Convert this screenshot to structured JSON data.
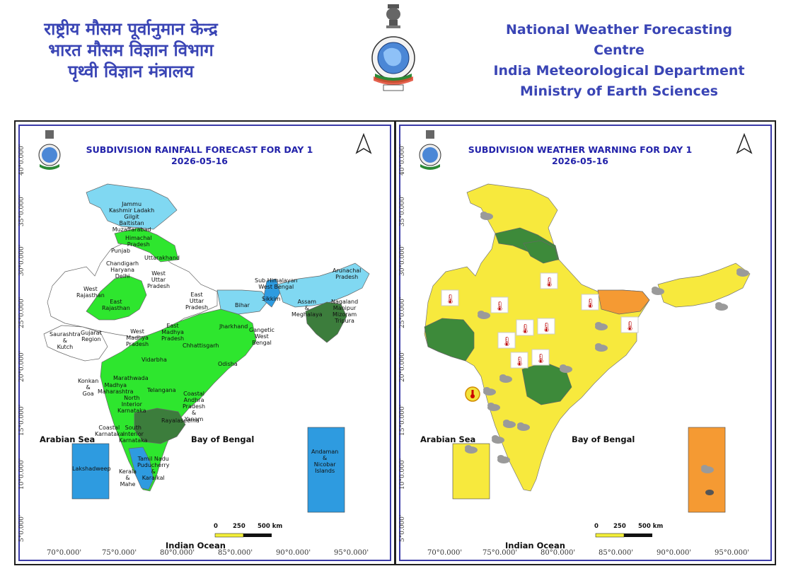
{
  "header": {
    "hindi_lines": [
      "राष्ट्रीय मौसम पूर्वानुमान केन्द्र",
      "भारत मौसम विज्ञान विभाग",
      "पृथ्वी विज्ञान मंत्रालय"
    ],
    "english_lines": [
      "National Weather Forecasting Centre",
      "India Meteorological Department",
      "Ministry of Earth Sciences"
    ],
    "emblem_icon": "imd-emblem-icon"
  },
  "colors": {
    "header_text": "#3a45b5",
    "title_text": "#2222aa",
    "rain_light_blue": "#80d8f2",
    "rain_green": "#2ee62e",
    "rain_dark_green": "#3c7d3c",
    "rain_blue": "#2e9be0",
    "rain_white": "#ffffff",
    "warn_yellow": "#f7e93d",
    "warn_dark_green": "#3d8a3a",
    "warn_orange": "#f59a33"
  },
  "panels": {
    "rainfall": {
      "title": "SUBDIVISION RAINFALL FORECAST FOR DAY 1",
      "date": "2026-05-16",
      "north_arrow_icon": "north-arrow-icon",
      "sea_labels": {
        "arabian": "Arabian Sea",
        "bengal": "Bay of Bengal",
        "indian": "Indian Ocean"
      },
      "lat_labels": [
        "40°0.000'",
        "35°0.000'",
        "30°0.000'",
        "25°0.000'",
        "20°0.000'",
        "15°0.000'",
        "10°0.000'",
        "5°0.000'"
      ],
      "lon_labels": [
        "70°0.000'",
        "75°0.000'",
        "80°0.000'",
        "85°0.000'",
        "90°0.000'",
        "95°0.000'"
      ],
      "scale": {
        "zero": "0",
        "mid": "250",
        "end": "500 km"
      },
      "subdivision_labels": {
        "jk": "Jammu\nKashmir Ladakh\nGilgit\nBaltistan\nMuzaffarabad",
        "hp": "Himachal\nPradesh",
        "punjab": "Punjab",
        "uk": "Uttarakhand",
        "chd": "Chandigarh\nHaryana\nDelhi",
        "wup": "West\nUttar\nPradesh",
        "wr": "West\nRajasthan",
        "er": "East\nRajasthan",
        "eup": "East\nUttar\nPradesh",
        "bihar": "Bihar",
        "shwb": "Sub Himalayan\nWest Bengal",
        "sikkim": "Sikkim",
        "arunachal": "Arunachal\nPradesh",
        "assam": "Assam\n&\nMeghalaya",
        "nmmt": "Nagaland\nManipur\nMizoram\nTripura",
        "sk": "Saurashtra\n&\nKutch",
        "gujarat": "Gujarat\nRegion",
        "wmp": "West\nMadhya\nPradesh",
        "emp": "East\nMadhya\nPradesh",
        "jharkhand": "Jharkhand",
        "gwb": "Gangetic\nWest\nBengal",
        "chhattisgarh": "Chhattisgarh",
        "odisha": "Odisha",
        "vidarbha": "Vidarbha",
        "marathwada": "Marathwada",
        "mm": "Madhya\nMaharashtra",
        "konkan": "Konkan\n&\nGoa",
        "telangana": "Telangana",
        "nik": "North\nInterior\nKarnataka",
        "cap": "Coastal\nAndhra\nPradesh\n&\nYanam",
        "ck": "Coastal\nKarnataka",
        "sik": "South\nInterior\nKarnataka",
        "rayalaseema": "Rayalaseema",
        "tn": "Tamil Nadu\nPuducherry\n&\nKaraikal",
        "kerala": "Kerala\n&\nMahe",
        "lakshadweep": "Lakshadweep",
        "andaman": "Andaman\n&\nNicobar\nIslands"
      }
    },
    "warning": {
      "title": "SUBDIVISION WEATHER WARNING FOR DAY 1",
      "date": "2026-05-16",
      "north_arrow_icon": "north-arrow-icon",
      "sea_labels": {
        "arabian": "Arabian Sea",
        "bengal": "Bay of Bengal",
        "indian": "Indian Ocean"
      },
      "lat_labels": [
        "40°0.000'",
        "35°0.000'",
        "30°0.000'",
        "25°0.000'",
        "20°0.000'",
        "15°0.000'",
        "10°0.000'",
        "5°0.000'"
      ],
      "lon_labels": [
        "70°0.000'",
        "75°0.000'",
        "80°0.000'",
        "85°0.000'",
        "90°0.000'",
        "95°0.000'"
      ],
      "scale": {
        "zero": "0",
        "mid": "250",
        "end": "500 km"
      },
      "icons": [
        "thunderstorm-rain-icon",
        "heatwave-thermometer-icon",
        "hot-humid-icon"
      ]
    }
  }
}
